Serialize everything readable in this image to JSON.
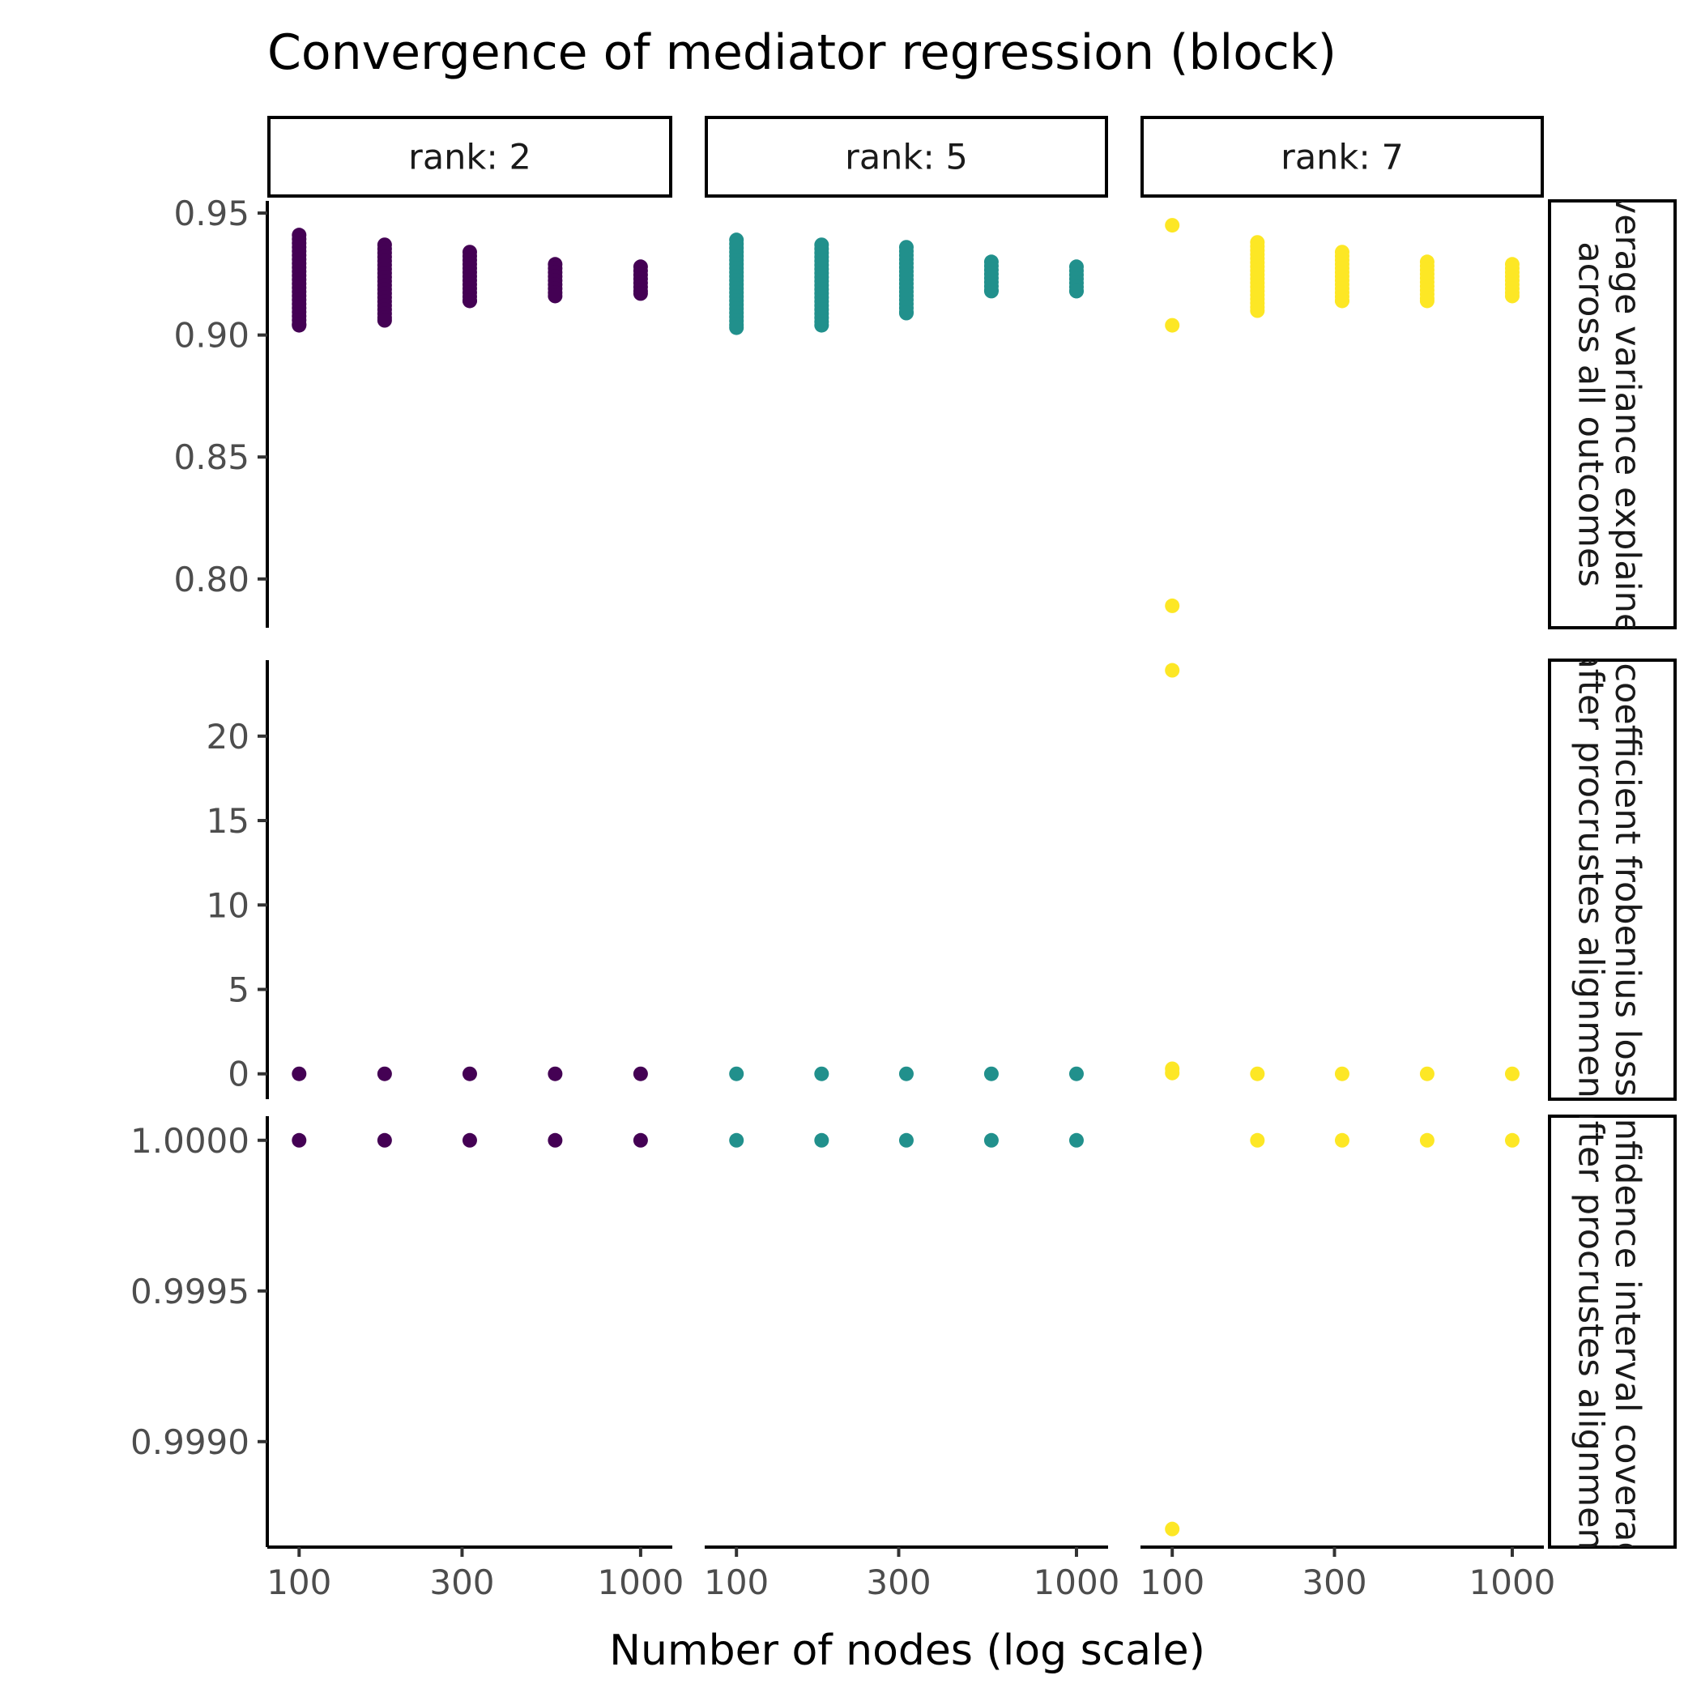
{
  "chart_data": {
    "type": "scatter",
    "title": "Convergence of mediator regression (block)",
    "xlabel": "Number of nodes (log scale)",
    "ylabel": "",
    "x_scale": "log",
    "x_ticks": [
      100,
      300,
      1000
    ],
    "x_tick_labels": [
      "100",
      "300",
      "1000"
    ],
    "columns": [
      {
        "label": "rank: 2",
        "color": "#440154"
      },
      {
        "label": "rank: 5",
        "color": "#21908C"
      },
      {
        "label": "rank: 7",
        "color": "#FDE725"
      }
    ],
    "x_values": [
      100,
      178,
      316,
      562,
      1000
    ],
    "rows": [
      {
        "label": "average variance explained across all outcomes",
        "ylim": [
          0.78,
          0.955
        ],
        "y_ticks": [
          0.8,
          0.85,
          0.9,
          0.95
        ],
        "y_tick_labels": [
          "0.80",
          "0.85",
          "0.90",
          "0.95"
        ],
        "points": [
          [
            [
              100,
              [
                0.904,
                0.941
              ]
            ],
            [
              178,
              [
                0.906,
                0.937
              ]
            ],
            [
              316,
              [
                0.914,
                0.934
              ]
            ],
            [
              562,
              [
                0.916,
                0.929
              ]
            ],
            [
              1000,
              [
                0.917,
                0.928
              ]
            ]
          ],
          [
            [
              100,
              [
                0.903,
                0.939
              ]
            ],
            [
              178,
              [
                0.904,
                0.937
              ]
            ],
            [
              316,
              [
                0.909,
                0.936
              ]
            ],
            [
              562,
              [
                0.918,
                0.93
              ]
            ],
            [
              1000,
              [
                0.918,
                0.928
              ]
            ]
          ],
          [
            [
              100,
              [
                0.789,
                0.904,
                0.945
              ]
            ],
            [
              178,
              [
                0.91,
                0.938
              ]
            ],
            [
              316,
              [
                0.914,
                0.934
              ]
            ],
            [
              562,
              [
                0.914,
                0.93
              ]
            ],
            [
              1000,
              [
                0.916,
                0.929
              ]
            ]
          ]
        ]
      },
      {
        "label": "coefficient frobenius loss after procrustes alignment",
        "ylim": [
          -1.5,
          24.5
        ],
        "y_ticks": [
          0,
          5,
          10,
          15,
          20
        ],
        "y_tick_labels": [
          "0",
          "5",
          "10",
          "15",
          "20"
        ],
        "points": [
          [
            [
              100,
              [
                0
              ]
            ],
            [
              178,
              [
                0
              ]
            ],
            [
              316,
              [
                0
              ]
            ],
            [
              562,
              [
                0
              ]
            ],
            [
              1000,
              [
                0
              ]
            ]
          ],
          [
            [
              100,
              [
                0
              ]
            ],
            [
              178,
              [
                0
              ]
            ],
            [
              316,
              [
                0
              ]
            ],
            [
              562,
              [
                0
              ]
            ],
            [
              1000,
              [
                0
              ]
            ]
          ],
          [
            [
              100,
              [
                0.05,
                0.3,
                23.9
              ]
            ],
            [
              178,
              [
                0
              ]
            ],
            [
              316,
              [
                0
              ]
            ],
            [
              562,
              [
                0
              ]
            ],
            [
              1000,
              [
                0
              ]
            ]
          ]
        ]
      },
      {
        "label": "confidence interval coverage after procrustes alignment",
        "ylim": [
          0.99865,
          1.00008
        ],
        "y_ticks": [
          0.999,
          0.9995,
          1.0
        ],
        "y_tick_labels": [
          "0.9990",
          "0.9995",
          "1.0000"
        ],
        "points": [
          [
            [
              100,
              [
                1.0
              ]
            ],
            [
              178,
              [
                1.0
              ]
            ],
            [
              316,
              [
                1.0
              ]
            ],
            [
              562,
              [
                1.0
              ]
            ],
            [
              1000,
              [
                1.0
              ]
            ]
          ],
          [
            [
              100,
              [
                1.0
              ]
            ],
            [
              178,
              [
                1.0
              ]
            ],
            [
              316,
              [
                1.0
              ]
            ],
            [
              562,
              [
                1.0
              ]
            ],
            [
              1000,
              [
                1.0
              ]
            ]
          ],
          [
            [
              100,
              [
                0.99871
              ]
            ],
            [
              178,
              [
                1.0
              ]
            ],
            [
              316,
              [
                1.0
              ]
            ],
            [
              562,
              [
                1.0
              ]
            ],
            [
              1000,
              [
                1.0
              ]
            ]
          ]
        ]
      }
    ],
    "grid": false,
    "legend": "none"
  }
}
